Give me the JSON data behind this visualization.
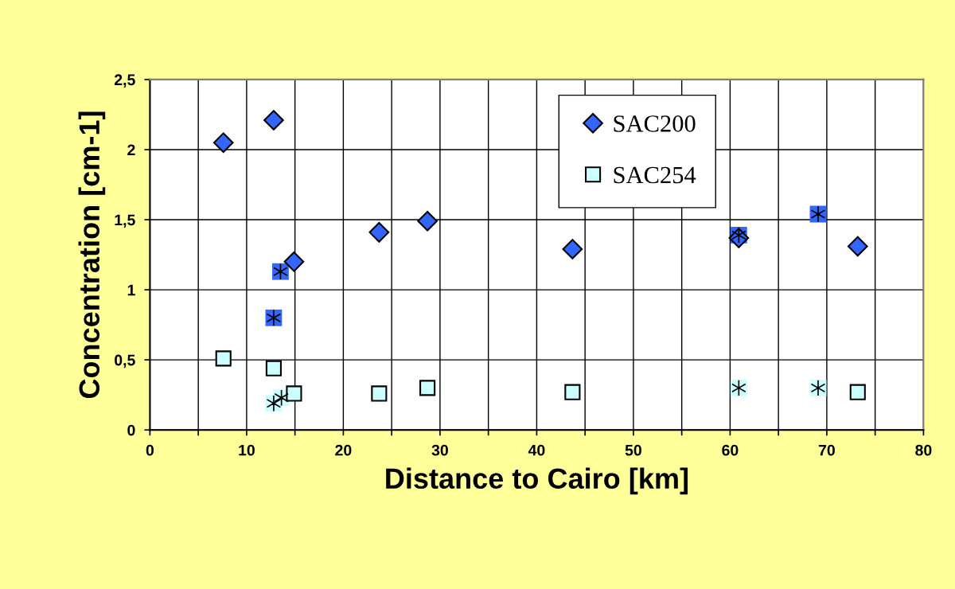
{
  "chart_data": {
    "type": "scatter",
    "xlabel": "Distance to Cairo [km]",
    "ylabel": "Concentration [cm-1]",
    "xlim": [
      0,
      80
    ],
    "ylim": [
      0,
      2.5
    ],
    "xticks": [
      0,
      {
        "value": 5,
        "label": null
      },
      10,
      {
        "value": 15,
        "label": null
      },
      20,
      {
        "value": 25,
        "label": null
      },
      30,
      {
        "value": 35,
        "label": null
      },
      40,
      {
        "value": 45,
        "label": null
      },
      50,
      {
        "value": 55,
        "label": null
      },
      60,
      {
        "value": 65,
        "label": null
      },
      70,
      {
        "value": 75,
        "label": null
      },
      80
    ],
    "yticks": [
      0,
      {
        "value": 0.5,
        "label": "0,5"
      },
      1,
      {
        "value": 1.5,
        "label": "1,5"
      },
      2,
      {
        "value": 2.5,
        "label": "2,5"
      }
    ],
    "grid": true,
    "legend": "top",
    "series": [
      {
        "name": "SAC200",
        "color": "#3366ff",
        "marker": "diamond",
        "x": [
          7.6,
          12.8,
          14.9,
          23.7,
          28.7,
          43.7,
          60.9,
          73.2
        ],
        "values": [
          2.05,
          2.21,
          1.2,
          1.41,
          1.49,
          1.29,
          1.37,
          1.31
        ]
      },
      {
        "name": "SAC254",
        "color": "#ccffff",
        "marker": "square",
        "x": [
          7.6,
          12.8,
          14.9,
          23.7,
          28.7,
          43.7,
          73.2
        ],
        "values": [
          0.51,
          0.44,
          0.26,
          0.26,
          0.3,
          0.27,
          0.27
        ]
      },
      {
        "color": "#3366ff",
        "marker": "square",
        "x": [
          13.5,
          12.8,
          60.9,
          69.1
        ],
        "values": [
          1.13,
          0.8,
          1.39,
          1.54
        ]
      },
      {
        "color": "#ccffff",
        "marker": "square",
        "x": [
          12.8,
          13.6,
          60.9,
          69.1
        ],
        "values": [
          0.19,
          0.23,
          0.3,
          0.3
        ]
      }
    ]
  }
}
